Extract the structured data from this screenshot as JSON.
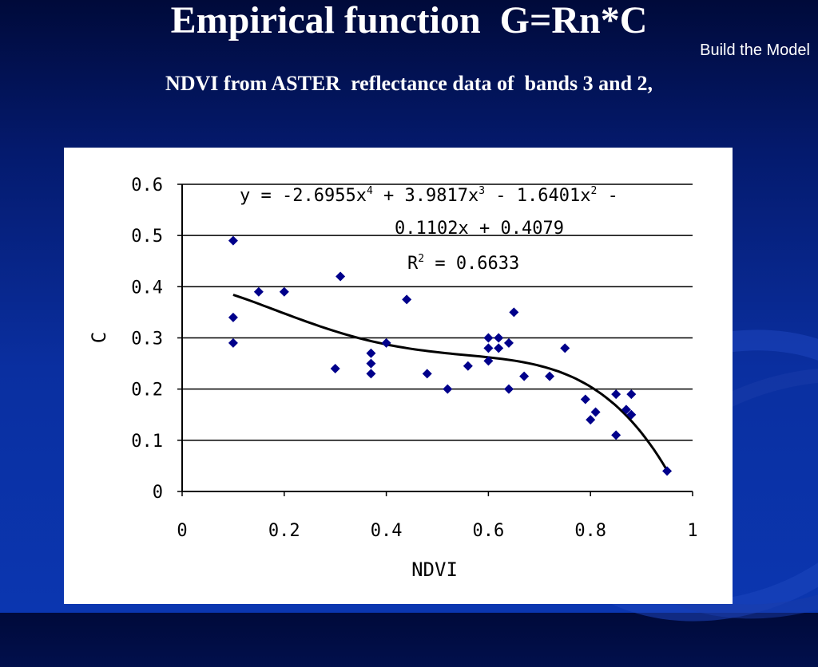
{
  "slide": {
    "title": "Empirical function  G=Rn*C",
    "corner_label": "Build the Model",
    "subtitle": "NDVI from ASTER  reflectance data of  bands 3 and 2,"
  },
  "chart_data": {
    "type": "scatter",
    "xlabel": "NDVI",
    "ylabel": "C",
    "xlim": [
      0,
      1
    ],
    "ylim": [
      0,
      0.6
    ],
    "x_ticks": [
      0,
      0.2,
      0.4,
      0.6,
      0.8,
      1
    ],
    "x_tick_labels": [
      "0",
      "0.2",
      "0.4",
      "0.6",
      "0.8",
      "1"
    ],
    "y_ticks": [
      0,
      0.1,
      0.2,
      0.3,
      0.4,
      0.5,
      0.6
    ],
    "y_tick_labels": [
      "0",
      "0.1",
      "0.2",
      "0.3",
      "0.4",
      "0.5",
      "0.6"
    ],
    "grid": "horizontal",
    "marker_color": "#00008b",
    "trendline": {
      "type": "polynomial",
      "order": 4,
      "coefficients": [
        -2.6955,
        3.9817,
        -1.6401,
        -0.1102,
        0.4079
      ],
      "x_range": [
        0.1,
        0.95
      ],
      "color": "#000000"
    },
    "annotation": {
      "equation_line1": "y = -2.6955x",
      "exp1": "4",
      "eq_part2": " + 3.9817x",
      "exp2": "3",
      "eq_part3": " - 1.6401x",
      "exp3": "2",
      "eq_part4": " -",
      "equation_line2": "0.1102x + 0.4079",
      "r2_label": "R",
      "r2_exp": "2",
      "r2_value": " = 0.6633"
    },
    "points": [
      {
        "x": 0.1,
        "y": 0.49
      },
      {
        "x": 0.1,
        "y": 0.34
      },
      {
        "x": 0.1,
        "y": 0.29
      },
      {
        "x": 0.15,
        "y": 0.39
      },
      {
        "x": 0.2,
        "y": 0.39
      },
      {
        "x": 0.3,
        "y": 0.24
      },
      {
        "x": 0.31,
        "y": 0.42
      },
      {
        "x": 0.37,
        "y": 0.27
      },
      {
        "x": 0.37,
        "y": 0.25
      },
      {
        "x": 0.37,
        "y": 0.23
      },
      {
        "x": 0.4,
        "y": 0.29
      },
      {
        "x": 0.44,
        "y": 0.375
      },
      {
        "x": 0.48,
        "y": 0.23
      },
      {
        "x": 0.52,
        "y": 0.2
      },
      {
        "x": 0.56,
        "y": 0.245
      },
      {
        "x": 0.6,
        "y": 0.3
      },
      {
        "x": 0.6,
        "y": 0.28
      },
      {
        "x": 0.6,
        "y": 0.255
      },
      {
        "x": 0.62,
        "y": 0.3
      },
      {
        "x": 0.62,
        "y": 0.28
      },
      {
        "x": 0.64,
        "y": 0.29
      },
      {
        "x": 0.64,
        "y": 0.2
      },
      {
        "x": 0.65,
        "y": 0.35
      },
      {
        "x": 0.67,
        "y": 0.225
      },
      {
        "x": 0.72,
        "y": 0.225
      },
      {
        "x": 0.75,
        "y": 0.28
      },
      {
        "x": 0.79,
        "y": 0.18
      },
      {
        "x": 0.8,
        "y": 0.14
      },
      {
        "x": 0.81,
        "y": 0.155
      },
      {
        "x": 0.85,
        "y": 0.19
      },
      {
        "x": 0.85,
        "y": 0.11
      },
      {
        "x": 0.87,
        "y": 0.16
      },
      {
        "x": 0.88,
        "y": 0.19
      },
      {
        "x": 0.88,
        "y": 0.15
      },
      {
        "x": 0.95,
        "y": 0.04
      }
    ]
  }
}
